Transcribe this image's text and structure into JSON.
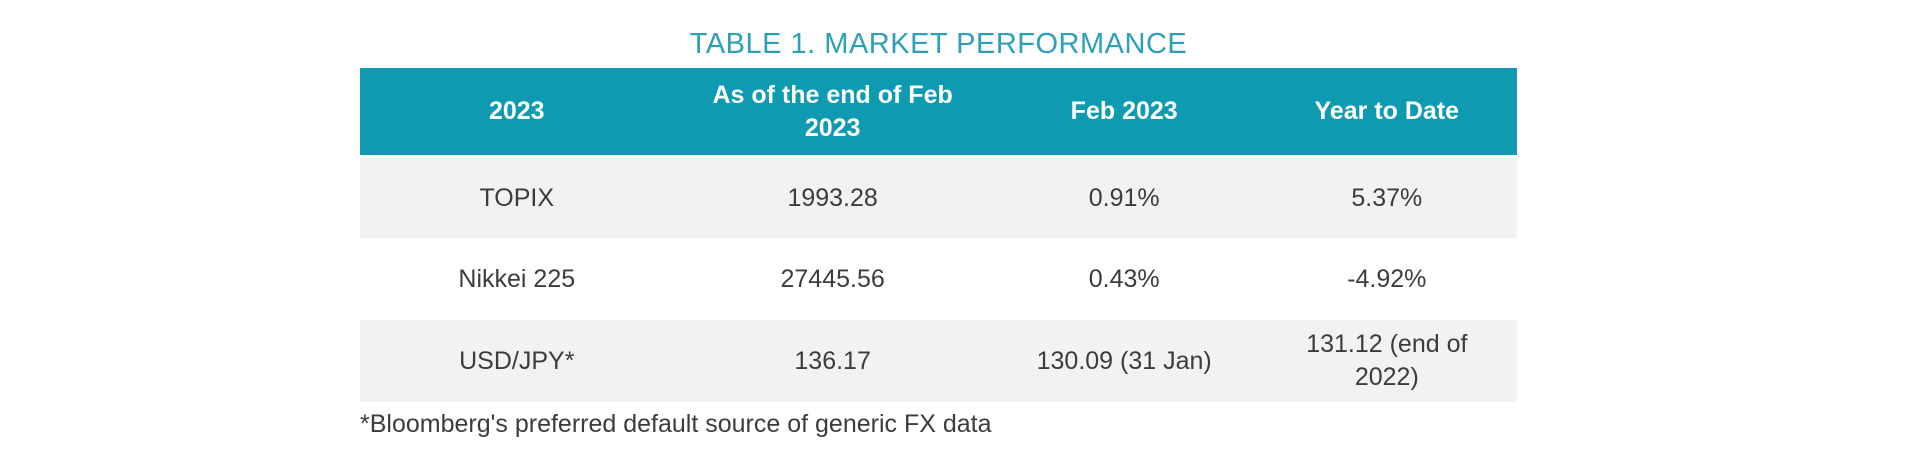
{
  "title": "TABLE 1. MARKET PERFORMANCE",
  "colors": {
    "header_bg": "#0E9AB0",
    "title_text": "#2E9FB9",
    "row_alt_bg": "#F2F2F2",
    "body_text": "#3C3C40",
    "header_text": "#FFFFFF"
  },
  "table": {
    "columns": [
      "2023",
      "As of the end of Feb 2023",
      "Feb 2023",
      "Year to Date"
    ],
    "rows": [
      {
        "cells": [
          "TOPIX",
          "1993.28",
          "0.91%",
          "5.37%"
        ]
      },
      {
        "cells": [
          "Nikkei 225",
          "27445.56",
          "0.43%",
          "-4.92%"
        ]
      },
      {
        "cells": [
          "USD/JPY*",
          "136.17",
          "130.09 (31 Jan)",
          "131.12 (end of 2022)"
        ]
      }
    ]
  },
  "footnote": "*Bloomberg's preferred default source of generic FX data"
}
